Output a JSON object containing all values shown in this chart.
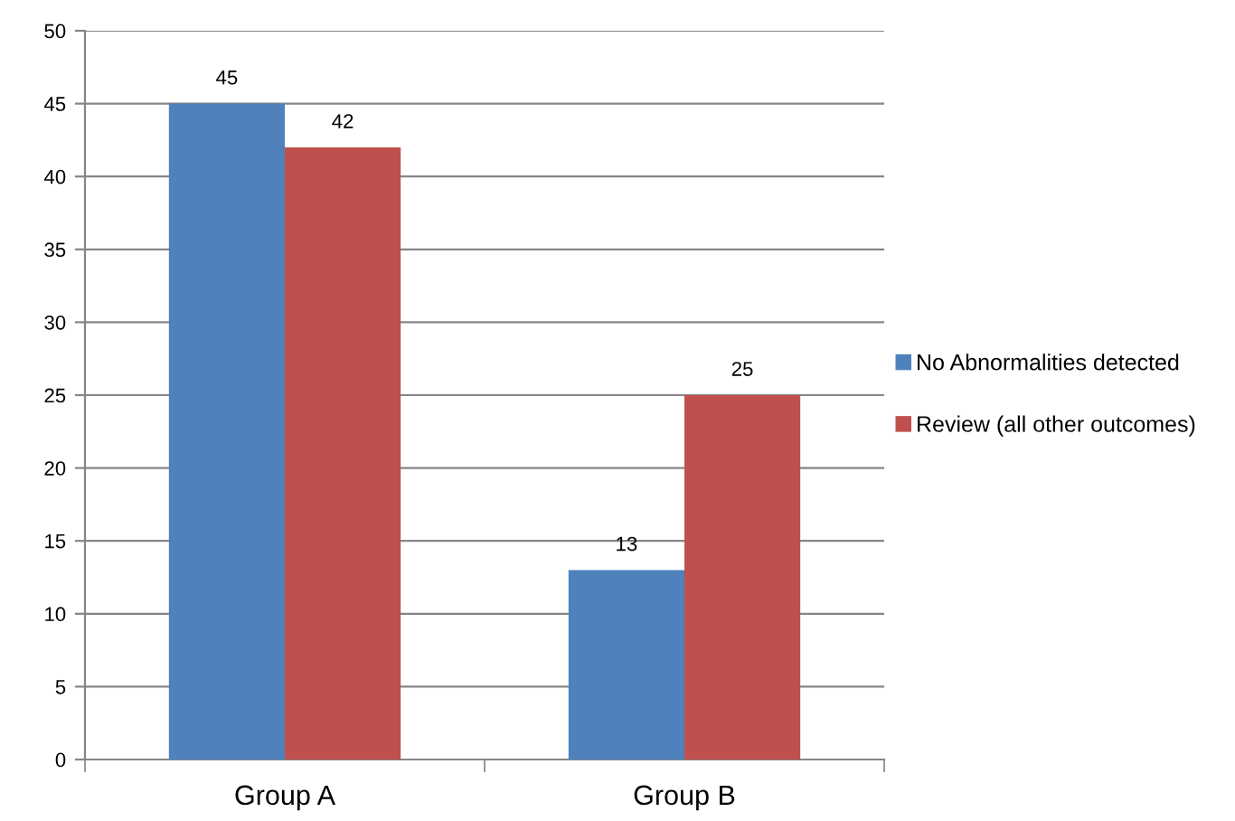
{
  "chart_data": {
    "type": "bar",
    "categories": [
      "Group A",
      "Group B"
    ],
    "series": [
      {
        "name": "No Abnormalities detected",
        "color": "#4f81bd",
        "values": [
          45,
          13
        ]
      },
      {
        "name": "Review (all other outcomes)",
        "color": "#c0504d",
        "values": [
          42,
          25
        ]
      }
    ],
    "ylim": [
      0,
      50
    ],
    "yticks": [
      0,
      5,
      10,
      15,
      20,
      25,
      30,
      35,
      40,
      45,
      50
    ],
    "grid": "y",
    "legend": "right",
    "data_labels": true
  }
}
